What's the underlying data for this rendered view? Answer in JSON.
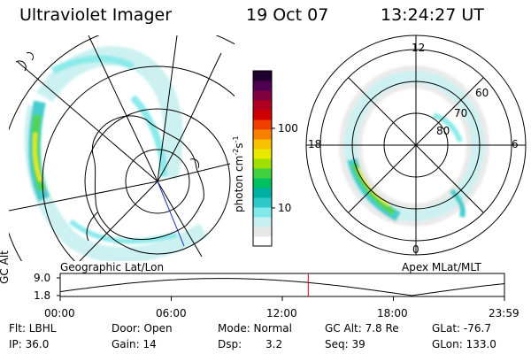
{
  "header": {
    "instrument": "Ultraviolet Imager",
    "date": "19 Oct 07",
    "time": "13:24:27 UT"
  },
  "left_panel": {
    "caption": "Geographic Lat/Lon"
  },
  "right_panel": {
    "caption": "Apex MLat/MLT",
    "mlt_labels": {
      "top": "12",
      "left": "18",
      "right": "6",
      "bottom": "0"
    },
    "lat_labels": [
      "60",
      "70",
      "80"
    ]
  },
  "colorbar": {
    "unit_label": "photon cm",
    "exp1": "-2",
    "s_label": "s",
    "exp2": "-1",
    "ticks": [
      "100",
      "10"
    ],
    "colors": [
      "#ffffff",
      "#e8e8e8",
      "#c8f0f0",
      "#80e8e8",
      "#30c8c8",
      "#00b0a0",
      "#00c060",
      "#40d040",
      "#a0e000",
      "#e8e800",
      "#f8c000",
      "#f88000",
      "#f04000",
      "#d00000",
      "#b00020",
      "#800040",
      "#500050",
      "#200030"
    ]
  },
  "timeline": {
    "axis_label": "GC Alt",
    "y_ticks": [
      "9.0",
      "1.8"
    ],
    "x_ticks": [
      "00:00",
      "06:00",
      "12:00",
      "18:00",
      "23:59"
    ],
    "current_time_hours": 13.4,
    "curve_color": "#000000",
    "marker_color": "#d00000"
  },
  "status": {
    "flt": "Flt: LBHL",
    "door": "Door: Open",
    "mode": "Mode: Normal",
    "gc_alt": "GC Alt: 7.8 Re",
    "glat": "GLat: -76.7",
    "ip": "IP: 36.0",
    "gain": "Gain: 14",
    "dsp_label": "Dsp:",
    "dsp_value": "3.2",
    "seq": "Seq: 39",
    "glon": "GLon: 133.0"
  }
}
